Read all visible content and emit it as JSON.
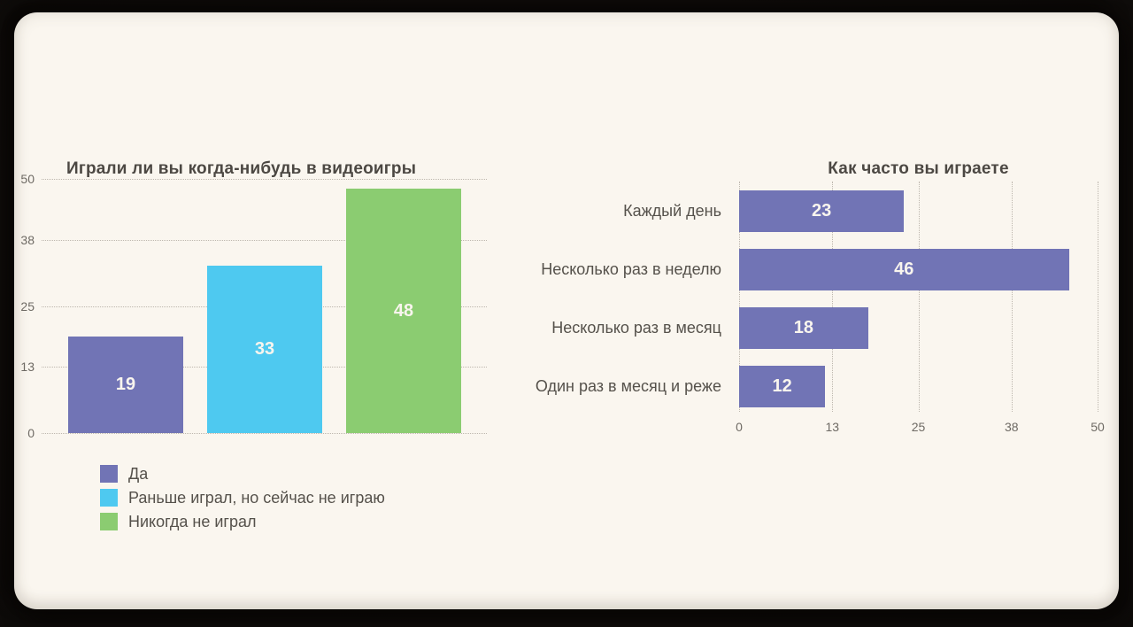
{
  "paper_color": "#faf6ef",
  "frame_color": "#0b0907",
  "chart_data": [
    {
      "type": "bar",
      "orientation": "vertical",
      "title": "Играли ли вы когда-нибудь в видеоигры",
      "categories": [
        "Да",
        "Раньше играл, но сейчас не играю",
        "Никогда не играл"
      ],
      "values": [
        19,
        33,
        48
      ],
      "colors": [
        "#7174b5",
        "#4ec9f0",
        "#8bcc71"
      ],
      "ylim": [
        0,
        50
      ],
      "yticks": [
        0,
        13,
        25,
        38,
        50
      ],
      "grid": "horizontal-dotted",
      "legend_position": "bottom-left",
      "value_label_style": "inside-center-white"
    },
    {
      "type": "bar",
      "orientation": "horizontal",
      "title": "Как часто вы играете",
      "categories": [
        "Каждый день",
        "Несколько раз в неделю",
        "Несколько раз в месяц",
        "Один раз в месяц и реже"
      ],
      "values": [
        23,
        46,
        18,
        12
      ],
      "bar_color": "#7174b5",
      "xlim": [
        0,
        50
      ],
      "xticks": [
        0,
        13,
        25,
        38,
        50
      ],
      "grid": "vertical-dotted",
      "value_label_style": "inside-center-white"
    }
  ]
}
